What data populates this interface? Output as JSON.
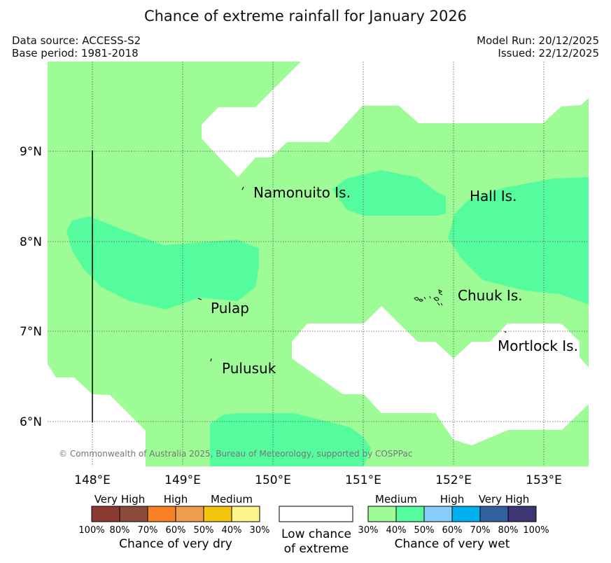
{
  "title": "Chance of extreme rainfall for January 2026",
  "header": {
    "data_source": "Data source: ACCESS-S2",
    "base_period": "Base period: 1981-2018",
    "model_run": "Model Run: 20/12/2025",
    "issued": "Issued: 22/12/2025"
  },
  "map": {
    "lon_labels": [
      "148°E",
      "149°E",
      "150°E",
      "151°E",
      "152°E",
      "153°E"
    ],
    "lat_labels": [
      "9°N",
      "8°N",
      "7°N",
      "6°N"
    ],
    "islands": {
      "namonuito": "Namonuito Is.",
      "hall": "Hall Is.",
      "pulap": "Pulap",
      "chuuk": "Chuuk Is.",
      "mortlock": "Mortlock Is.",
      "pulusuk": "Pulusuk"
    },
    "copyright": "© Commonwealth of Australia 2025, Bureau of Meteorology, supported by COSPPac",
    "colors": {
      "wet_medium": "#9dfc95",
      "wet_medium_high": "#55fc9d",
      "low_chance": "#ffffff"
    }
  },
  "legend": {
    "dry": {
      "categories": [
        "Very High",
        "High",
        "Medium"
      ],
      "ticks": [
        "100%",
        "80%",
        "70%",
        "60%",
        "50%",
        "40%",
        "30%"
      ],
      "colors": [
        "#8b3a32",
        "#8c4c3c",
        "#fb8127",
        "#ef9c4e",
        "#f2c40d",
        "#fdf58c"
      ],
      "label": "Chance of very dry"
    },
    "neutral": {
      "label_line1": "Low chance",
      "label_line2": "of extreme"
    },
    "wet": {
      "categories": [
        "Medium",
        "High",
        "Very High"
      ],
      "ticks": [
        "30%",
        "40%",
        "50%",
        "60%",
        "70%",
        "80%",
        "100%"
      ],
      "colors": [
        "#9dfc95",
        "#55fc9d",
        "#87cefa",
        "#00b0ef",
        "#33609e",
        "#3c3675"
      ],
      "label": "Chance of very wet"
    }
  }
}
